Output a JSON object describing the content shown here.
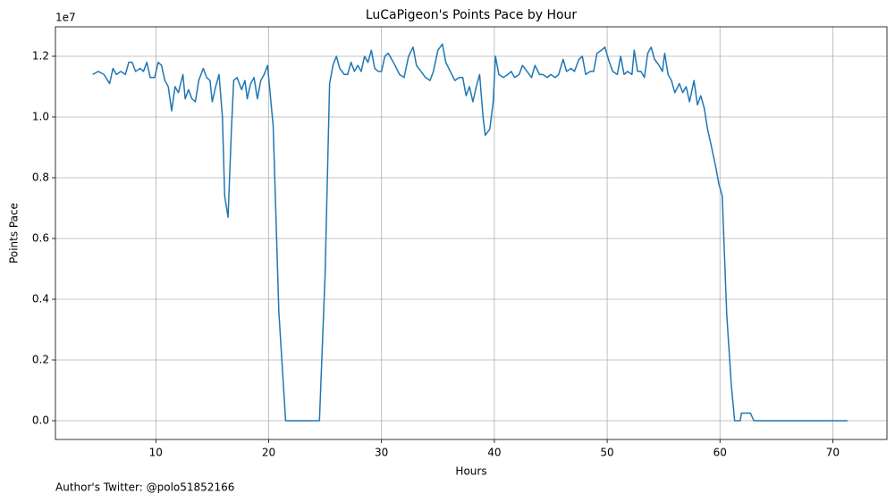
{
  "chart_data": {
    "type": "line",
    "title": "LuCaPigeon's Points Pace by Hour",
    "xlabel": "Hours",
    "ylabel": "Points Pace",
    "y_offset_label": "1e7",
    "footer": "Author's Twitter: @polo51852166",
    "grid": true,
    "xlim": [
      1.1,
      74.8
    ],
    "xticks": [
      10,
      20,
      30,
      40,
      50,
      60,
      70
    ],
    "ylim": [
      -617647,
      12970000
    ],
    "yticks": [
      {
        "value": 0,
        "label": "0.0"
      },
      {
        "value": 2000000,
        "label": "0.2"
      },
      {
        "value": 4000000,
        "label": "0.4"
      },
      {
        "value": 6000000,
        "label": "0.6"
      },
      {
        "value": 8000000,
        "label": "0.8"
      },
      {
        "value": 10000000,
        "label": "1.0"
      },
      {
        "value": 12000000,
        "label": "1.2"
      }
    ],
    "x": [
      4.4,
      4.9,
      5.4,
      5.9,
      6.2,
      6.5,
      6.9,
      7.3,
      7.6,
      7.9,
      8.2,
      8.6,
      8.9,
      9.2,
      9.5,
      9.9,
      10.2,
      10.5,
      10.8,
      11.1,
      11.4,
      11.7,
      12.0,
      12.4,
      12.6,
      12.9,
      13.2,
      13.5,
      13.8,
      14.2,
      14.5,
      14.8,
      15.0,
      15.3,
      15.6,
      15.9,
      16.1,
      16.4,
      16.7,
      16.9,
      17.2,
      17.6,
      17.9,
      18.1,
      18.4,
      18.7,
      19.0,
      19.3,
      19.6,
      19.9,
      20.4,
      20.9,
      21.5,
      24.5,
      25.0,
      25.4,
      25.7,
      26.0,
      26.3,
      26.7,
      27.0,
      27.3,
      27.6,
      27.9,
      28.2,
      28.5,
      28.8,
      29.1,
      29.4,
      29.7,
      30.0,
      30.3,
      30.6,
      30.9,
      31.2,
      31.6,
      32.0,
      32.4,
      32.8,
      33.1,
      33.5,
      33.9,
      34.3,
      34.6,
      35.0,
      35.4,
      35.7,
      36.1,
      36.5,
      36.9,
      37.2,
      37.5,
      37.8,
      38.1,
      38.4,
      38.7,
      39.0,
      39.2,
      39.6,
      39.9,
      40.1,
      40.4,
      40.8,
      41.2,
      41.5,
      41.8,
      42.2,
      42.5,
      42.9,
      43.3,
      43.6,
      44.0,
      44.3,
      44.7,
      45.0,
      45.4,
      45.7,
      46.1,
      46.4,
      46.8,
      47.1,
      47.5,
      47.8,
      48.1,
      48.5,
      48.8,
      49.1,
      49.5,
      49.8,
      50.2,
      50.5,
      50.9,
      51.2,
      51.5,
      51.8,
      52.2,
      52.4,
      52.7,
      53.0,
      53.3,
      53.6,
      53.9,
      54.2,
      54.6,
      54.9,
      55.1,
      55.4,
      55.7,
      56.0,
      56.4,
      56.7,
      57.0,
      57.3,
      57.7,
      58.0,
      58.3,
      58.6,
      58.9,
      59.2,
      59.6,
      59.9,
      60.2,
      60.6,
      61.0,
      61.3,
      61.8,
      61.9,
      62.7,
      63.0,
      71.3
    ],
    "series": [
      {
        "color": "#1f77b4",
        "values": [
          11400000,
          11500000,
          11400000,
          11100000,
          11600000,
          11400000,
          11500000,
          11400000,
          11800000,
          11800000,
          11500000,
          11600000,
          11500000,
          11800000,
          11300000,
          11300000,
          11800000,
          11700000,
          11200000,
          11000000,
          10200000,
          11000000,
          10800000,
          11400000,
          10600000,
          10900000,
          10600000,
          10500000,
          11200000,
          11600000,
          11300000,
          11200000,
          10500000,
          11000000,
          11400000,
          10000000,
          7400000,
          6700000,
          9600000,
          11200000,
          11300000,
          10900000,
          11200000,
          10600000,
          11100000,
          11300000,
          10600000,
          11200000,
          11400000,
          11700000,
          9700000,
          3600000,
          0,
          0,
          4800000,
          11100000,
          11700000,
          12000000,
          11600000,
          11400000,
          11400000,
          11800000,
          11500000,
          11700000,
          11500000,
          12000000,
          11800000,
          12200000,
          11600000,
          11500000,
          11500000,
          12000000,
          12100000,
          11900000,
          11700000,
          11400000,
          11300000,
          12000000,
          12300000,
          11700000,
          11500000,
          11300000,
          11200000,
          11500000,
          12200000,
          12400000,
          11800000,
          11500000,
          11200000,
          11300000,
          11300000,
          10700000,
          11000000,
          10500000,
          11000000,
          11400000,
          10000000,
          9400000,
          9600000,
          10500000,
          12000000,
          11400000,
          11300000,
          11400000,
          11500000,
          11300000,
          11400000,
          11700000,
          11500000,
          11300000,
          11700000,
          11400000,
          11400000,
          11300000,
          11400000,
          11300000,
          11400000,
          11900000,
          11500000,
          11600000,
          11500000,
          11900000,
          12000000,
          11400000,
          11500000,
          11500000,
          12100000,
          12200000,
          12300000,
          11800000,
          11500000,
          11400000,
          12000000,
          11400000,
          11500000,
          11400000,
          12200000,
          11500000,
          11500000,
          11300000,
          12100000,
          12300000,
          11900000,
          11700000,
          11500000,
          12100000,
          11400000,
          11200000,
          10800000,
          11100000,
          10800000,
          11000000,
          10500000,
          11200000,
          10400000,
          10700000,
          10300000,
          9600000,
          9100000,
          8400000,
          7800000,
          7400000,
          3500000,
          1200000,
          0,
          0,
          250000,
          250000,
          0,
          0
        ]
      }
    ]
  }
}
